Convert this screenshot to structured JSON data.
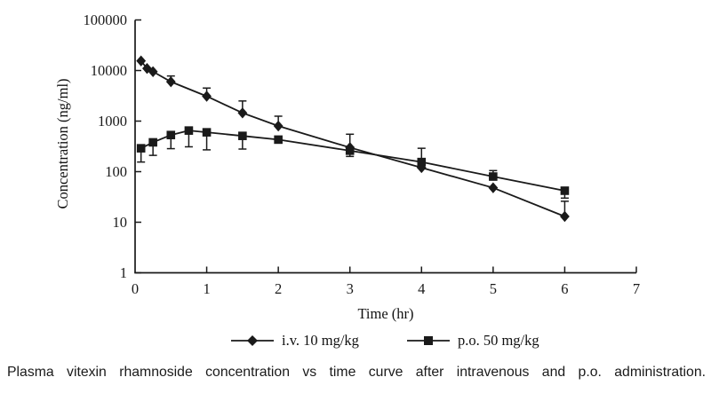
{
  "caption": "Plasma vitexin rhamnoside concentration vs time curve after intravenous and p.o. administration.",
  "chart_data": {
    "type": "line",
    "title": "",
    "xlabel": "Time (hr)",
    "ylabel": "Concentration (ng/ml)",
    "y_scale": "log",
    "xlim": [
      0,
      7
    ],
    "ylim": [
      1,
      100000
    ],
    "x_ticks": [
      0,
      1,
      2,
      3,
      4,
      5,
      6,
      7
    ],
    "y_ticks": [
      1,
      10,
      100,
      1000,
      10000,
      100000
    ],
    "grid": false,
    "legend_position": "bottom",
    "line_color": "#1a1a1a",
    "series": [
      {
        "name": "i.v. 10 mg/kg",
        "marker": "diamond",
        "x": [
          0.083,
          0.167,
          0.25,
          0.5,
          1,
          1.5,
          2,
          3,
          4,
          5,
          6
        ],
        "y": [
          15500,
          11000,
          9500,
          6000,
          3100,
          1450,
          800,
          300,
          120,
          48,
          13
        ],
        "err_hi": [
          null,
          null,
          null,
          7800,
          4500,
          2500,
          1250,
          550,
          null,
          null,
          26
        ],
        "err_lo": [
          null,
          null,
          null,
          null,
          null,
          null,
          null,
          200,
          null,
          null,
          null
        ]
      },
      {
        "name": "p.o. 50 mg/kg",
        "marker": "square",
        "x": [
          0.083,
          0.25,
          0.5,
          0.75,
          1,
          1.5,
          2,
          3,
          4,
          5,
          6
        ],
        "y": [
          290,
          380,
          530,
          650,
          600,
          510,
          430,
          260,
          155,
          80,
          42
        ],
        "err_hi": [
          null,
          null,
          null,
          null,
          null,
          null,
          null,
          null,
          290,
          105,
          null
        ],
        "err_lo": [
          155,
          210,
          285,
          310,
          270,
          280,
          null,
          null,
          null,
          null,
          30
        ]
      }
    ]
  }
}
